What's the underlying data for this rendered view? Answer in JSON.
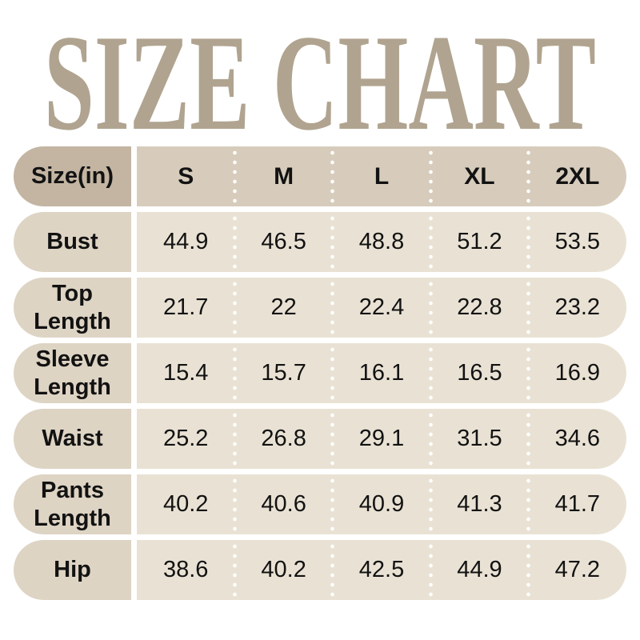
{
  "title": "SIZE CHART",
  "colors": {
    "title_text": "#b0a490",
    "header_label_bg": "#c3b5a2",
    "header_row_bg": "#d7ccbc",
    "row_label_bg": "#ded4c4",
    "row_value_bg": "#e9e2d4",
    "table_text": "#121212",
    "divider_dots": "#ffffff",
    "page_bg": "#ffffff"
  },
  "chart_data": {
    "type": "table",
    "title": "SIZE CHART",
    "unit": "inches",
    "header": {
      "corner_label": "Size(in)",
      "size_columns": [
        "S",
        "M",
        "L",
        "XL",
        "2XL"
      ]
    },
    "rows": [
      {
        "label": "Bust",
        "values": [
          "44.9",
          "46.5",
          "48.8",
          "51.2",
          "53.5"
        ]
      },
      {
        "label": "Top Length",
        "values": [
          "21.7",
          "22",
          "22.4",
          "22.8",
          "23.2"
        ]
      },
      {
        "label": "Sleeve Length",
        "values": [
          "15.4",
          "15.7",
          "16.1",
          "16.5",
          "16.9"
        ]
      },
      {
        "label": "Waist",
        "values": [
          "25.2",
          "26.8",
          "29.1",
          "31.5",
          "34.6"
        ]
      },
      {
        "label": "Pants Length",
        "values": [
          "40.2",
          "40.6",
          "40.9",
          "41.3",
          "41.7"
        ]
      },
      {
        "label": "Hip",
        "values": [
          "38.6",
          "40.2",
          "42.5",
          "44.9",
          "47.2"
        ]
      }
    ]
  }
}
